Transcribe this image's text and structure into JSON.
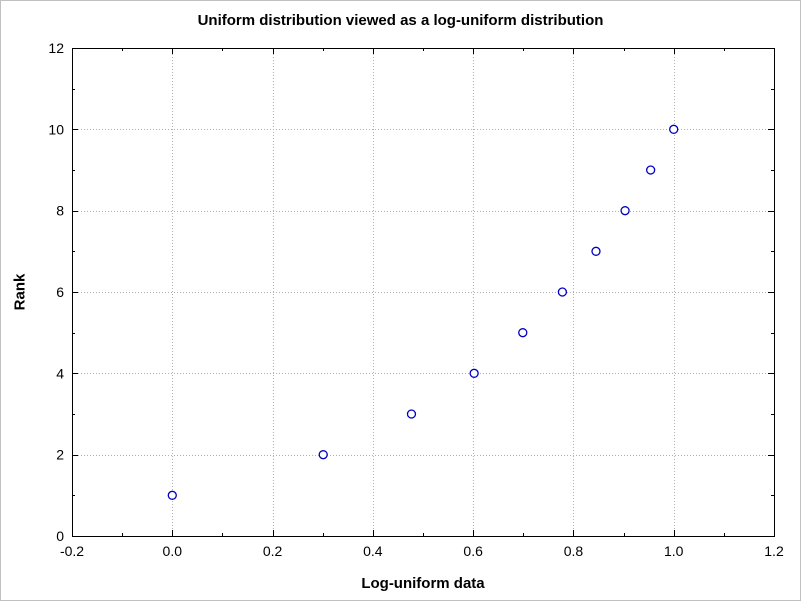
{
  "chart_data": {
    "type": "scatter",
    "title": "Uniform distribution viewed as a log-uniform distribution",
    "xlabel": "Log-uniform data",
    "ylabel": "Rank",
    "xlim": [
      -0.2,
      1.2
    ],
    "ylim": [
      0,
      12
    ],
    "xticks": [
      -0.2,
      0.0,
      0.2,
      0.4,
      0.6,
      0.8,
      1.0,
      1.2
    ],
    "xtick_labels": [
      "-0.2",
      "0.0",
      "0.2",
      "0.4",
      "0.6",
      "0.8",
      "1.0",
      "1.2"
    ],
    "yticks": [
      0,
      2,
      4,
      6,
      8,
      10,
      12
    ],
    "ytick_labels": [
      "0",
      "2",
      "4",
      "6",
      "8",
      "10",
      "12"
    ],
    "grid": true,
    "marker_color": "#0000c0",
    "points": [
      {
        "x": 0.0,
        "y": 1
      },
      {
        "x": 0.301,
        "y": 2
      },
      {
        "x": 0.477,
        "y": 3
      },
      {
        "x": 0.602,
        "y": 4
      },
      {
        "x": 0.699,
        "y": 5
      },
      {
        "x": 0.778,
        "y": 6
      },
      {
        "x": 0.845,
        "y": 7
      },
      {
        "x": 0.903,
        "y": 8
      },
      {
        "x": 0.954,
        "y": 9
      },
      {
        "x": 1.0,
        "y": 10
      }
    ]
  }
}
